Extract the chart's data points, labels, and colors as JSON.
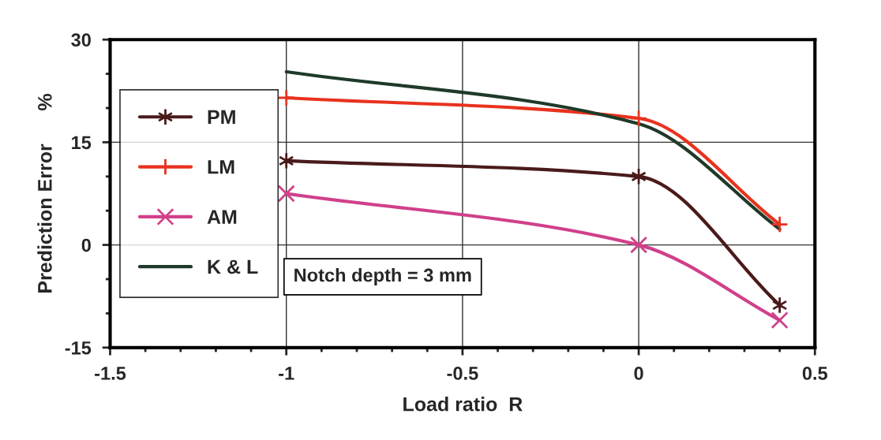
{
  "chart_data": {
    "type": "line",
    "xlabel": "Load ratio  R",
    "ylabel": "Prediction Error      %",
    "x": [
      -1,
      0,
      0.4
    ],
    "series": [
      {
        "name": "PM",
        "color": "#4a1a1a",
        "marker": "cross",
        "values": [
          12.3,
          10,
          -8.8
        ]
      },
      {
        "name": "LM",
        "color": "#e8321e",
        "marker": "cross",
        "values": [
          21.5,
          18.5,
          3
        ]
      },
      {
        "name": "AM",
        "color": "#d0408a",
        "marker": "cross",
        "values": [
          7.5,
          0,
          -11
        ]
      },
      {
        "name": "K & L",
        "color": "#1f3a28",
        "marker": "none",
        "values": [
          25.3,
          17.7,
          2.3
        ]
      }
    ],
    "xlim": [
      -1.5,
      0.5
    ],
    "xticks": [
      -1.5,
      -1,
      -0.5,
      0,
      0.5
    ],
    "ylim": [
      -15,
      30
    ],
    "yticks": [
      -15,
      0,
      15,
      30
    ],
    "grid": true,
    "legend": "left",
    "annotations": [
      "Notch depth = 3 mm"
    ]
  }
}
